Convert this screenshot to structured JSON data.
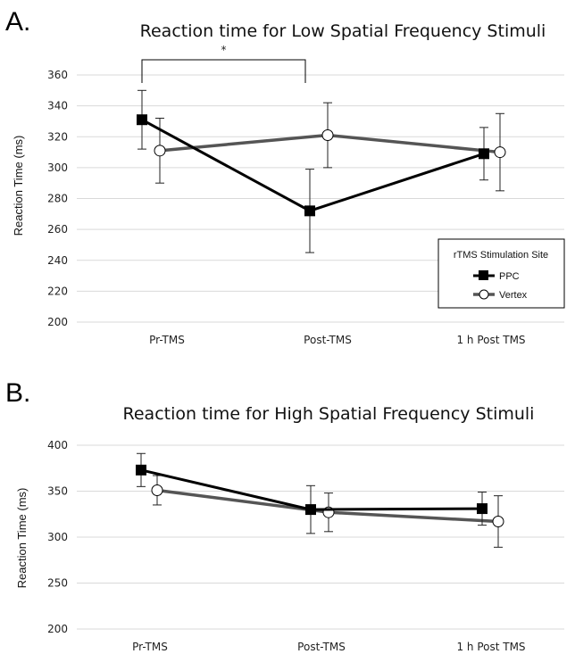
{
  "chart_data": [
    {
      "panel_label": "A.",
      "type": "line",
      "title": "Reaction time for Low Spatial Frequency Stimuli",
      "ylabel": "Reaction Time (ms)",
      "xlabel": "",
      "categories": [
        "Pr-TMS",
        "Post-TMS",
        "1 h Post TMS"
      ],
      "ylim": [
        200,
        360
      ],
      "yticks": [
        200,
        220,
        240,
        260,
        280,
        300,
        320,
        340,
        360
      ],
      "grid": true,
      "series": [
        {
          "name": "PPC",
          "values": [
            331,
            272,
            309
          ],
          "errors": [
            19,
            27,
            17
          ],
          "color": "#000000",
          "marker": "square-filled"
        },
        {
          "name": "Vertex",
          "values": [
            311,
            321,
            310
          ],
          "errors": [
            21,
            21,
            25
          ],
          "color": "#555555",
          "marker": "circle-open"
        }
      ],
      "legend": {
        "title": "rTMS Stimulation Site",
        "placement": "bottom-right"
      },
      "annotation": {
        "text": "*",
        "between": [
          "Pr-TMS",
          "Post-TMS"
        ]
      }
    },
    {
      "panel_label": "B.",
      "type": "line",
      "title": "Reaction time for High Spatial Frequency Stimuli",
      "ylabel": "Reaction Time (ms)",
      "xlabel": "",
      "categories": [
        "Pr-TMS",
        "Post-TMS",
        "1 h Post TMS"
      ],
      "ylim": [
        200,
        400
      ],
      "yticks": [
        200,
        250,
        300,
        350,
        400
      ],
      "grid": true,
      "series": [
        {
          "name": "PPC",
          "values": [
            373,
            330,
            331
          ],
          "errors": [
            18,
            26,
            18
          ],
          "color": "#000000",
          "marker": "square-filled"
        },
        {
          "name": "Vertex",
          "values": [
            351,
            327,
            317
          ],
          "errors": [
            16,
            21,
            28
          ],
          "color": "#555555",
          "marker": "circle-open"
        }
      ]
    }
  ]
}
